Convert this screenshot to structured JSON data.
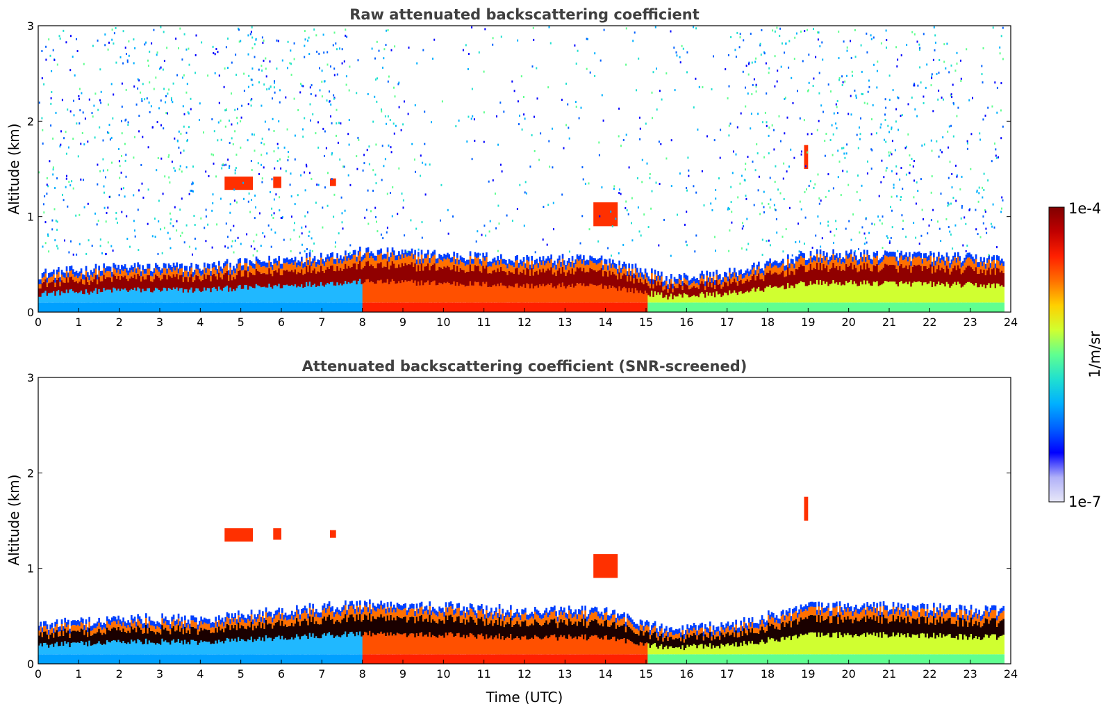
{
  "chart_data": [
    {
      "type": "heatmap",
      "title": "Raw attenuated backscattering coefficient",
      "xlabel": "",
      "ylabel": "Altitude (km)",
      "xlim": [
        0,
        24
      ],
      "ylim": [
        0,
        3
      ],
      "xticks": [
        "0",
        "1",
        "2",
        "3",
        "4",
        "5",
        "6",
        "7",
        "8",
        "9",
        "10",
        "11",
        "12",
        "13",
        "14",
        "15",
        "16",
        "17",
        "18",
        "19",
        "20",
        "21",
        "22",
        "23",
        "24"
      ],
      "yticks": [
        "0",
        "1",
        "2",
        "3"
      ],
      "colorscale": "jet",
      "log_scale": true,
      "features": {
        "boundary_layer_top_km": [
          {
            "x": 0,
            "y": 0.35
          },
          {
            "x": 2,
            "y": 0.42
          },
          {
            "x": 4,
            "y": 0.42
          },
          {
            "x": 6,
            "y": 0.5
          },
          {
            "x": 8,
            "y": 0.58
          },
          {
            "x": 10,
            "y": 0.55
          },
          {
            "x": 12,
            "y": 0.5
          },
          {
            "x": 14,
            "y": 0.5
          },
          {
            "x": 15.5,
            "y": 0.3
          },
          {
            "x": 17,
            "y": 0.35
          },
          {
            "x": 19,
            "y": 0.55
          },
          {
            "x": 21,
            "y": 0.55
          },
          {
            "x": 23.8,
            "y": 0.5
          }
        ],
        "cloud_layers": [
          {
            "time_start": 4.6,
            "time_end": 5.3,
            "alt_low": 1.28,
            "alt_high": 1.42
          },
          {
            "time_start": 5.8,
            "time_end": 6.0,
            "alt_low": 1.3,
            "alt_high": 1.42
          },
          {
            "time_start": 7.2,
            "time_end": 7.35,
            "alt_low": 1.32,
            "alt_high": 1.4
          },
          {
            "time_start": 13.7,
            "time_end": 14.3,
            "alt_low": 0.9,
            "alt_high": 1.15
          },
          {
            "time_start": 18.9,
            "time_end": 19.0,
            "alt_low": 1.5,
            "alt_high": 1.75
          }
        ],
        "noise_above_boundary_layer": true
      }
    },
    {
      "type": "heatmap",
      "title": "Attenuated backscattering coefficient (SNR-screened)",
      "xlabel": "Time (UTC)",
      "ylabel": "Altitude (km)",
      "xlim": [
        0,
        24
      ],
      "ylim": [
        0,
        3
      ],
      "xticks": [
        "0",
        "1",
        "2",
        "3",
        "4",
        "5",
        "6",
        "7",
        "8",
        "9",
        "10",
        "11",
        "12",
        "13",
        "14",
        "15",
        "16",
        "17",
        "18",
        "19",
        "20",
        "21",
        "22",
        "23",
        "24"
      ],
      "yticks": [
        "0",
        "1",
        "2",
        "3"
      ],
      "colorscale": "jet",
      "log_scale": true,
      "features": {
        "noise_above_boundary_layer": false
      }
    }
  ],
  "colorbar": {
    "max_label": "1e-4",
    "min_label": "1e-7",
    "unit_label": "1/m/sr",
    "colors": [
      "#e8e8f8",
      "#b0b0f8",
      "#0000ff",
      "#0060ff",
      "#00b0ff",
      "#20e0d0",
      "#60ff90",
      "#d0ff30",
      "#ffd000",
      "#ff7000",
      "#ff2000",
      "#c00000",
      "#800000"
    ]
  }
}
